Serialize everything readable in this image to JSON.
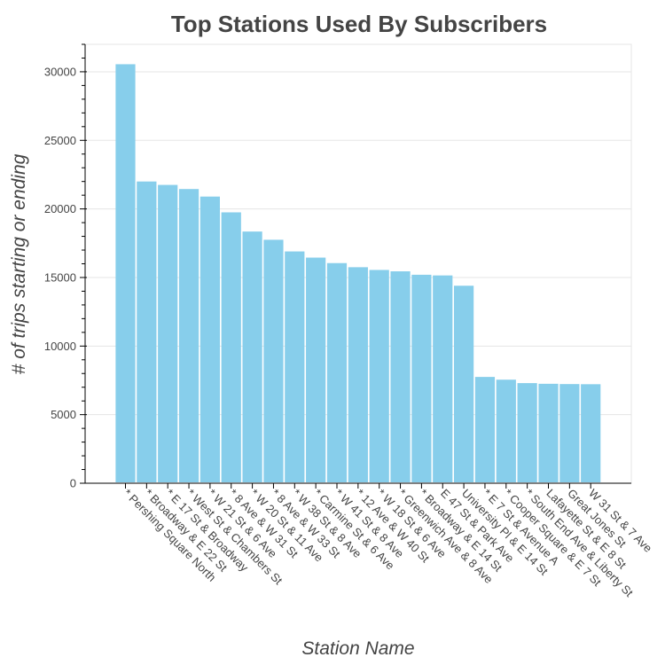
{
  "chart_data": {
    "type": "bar",
    "title": "Top Stations Used By Subscribers",
    "xlabel": "Station Name",
    "ylabel": "# of trips starting or ending",
    "ylim": [
      0,
      32000
    ],
    "yticks": [
      0,
      5000,
      10000,
      15000,
      20000,
      25000,
      30000
    ],
    "grid": true,
    "bar_color": "#87CEEB",
    "categories": [
      "* Pershing Square North",
      "* Broadway & E 22 St",
      "* E 17 St & Broadway",
      "* West St & Chambers St",
      "* W 21 St & 6 Ave",
      "* 8 Ave & W 31 St",
      "* W 20 St & 11 Ave",
      "* 8 Ave & W 33 St",
      "* W 38 St & 8 Ave",
      "* Carmine St & 6 Ave",
      "* W 41 St & 8 Ave",
      "* 12 Ave & W 40 St",
      "* W 18 St & 6 Ave",
      "* Greenwich Ave & 8 Ave",
      "* Broadway & E 14 St",
      "E 47 St & Park Ave",
      "University Pl & E 14 St",
      "* E 7 St & Avenue A",
      "* Cooper Square & E 7 St",
      "* South End Ave & Liberty St",
      "Lafayette St & E 8 St",
      "Great Jones St",
      "W 31 St & 7 Ave"
    ],
    "values": [
      30550,
      22000,
      21750,
      21450,
      20900,
      19750,
      18350,
      17750,
      16900,
      16450,
      16050,
      15750,
      15550,
      15450,
      15200,
      15150,
      14400,
      7750,
      7550,
      7300,
      7250,
      7230,
      7220
    ]
  }
}
